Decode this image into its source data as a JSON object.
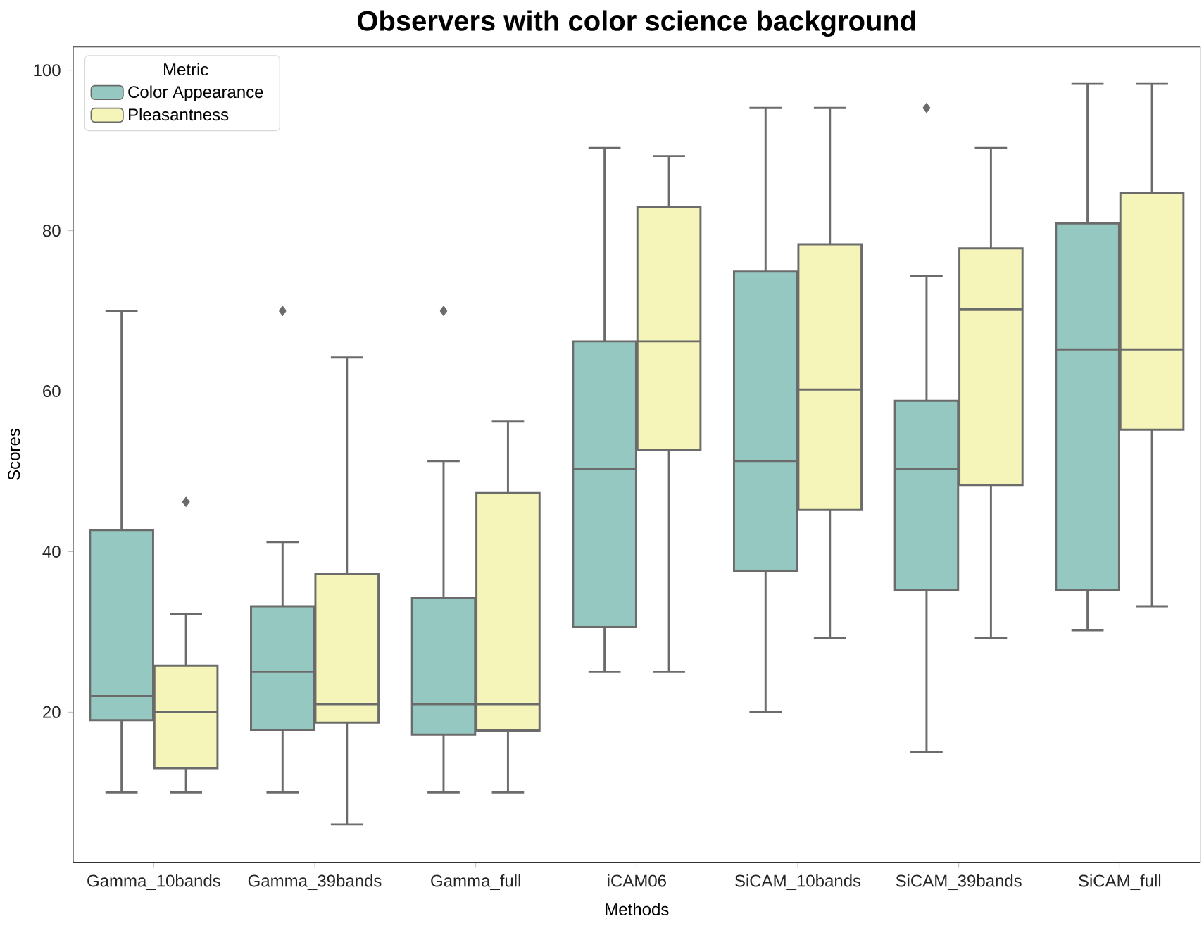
{
  "chart_data": {
    "type": "box",
    "title": "Observers with color science background",
    "xlabel": "Methods",
    "ylabel": "Scores",
    "legend_title": "Metric",
    "categories": [
      "Gamma_10bands",
      "Gamma_39bands",
      "Gamma_full",
      "iCAM06",
      "SiCAM_10bands",
      "SiCAM_39bands",
      "SiCAM_full"
    ],
    "series": [
      {
        "name": "Color Appearance",
        "color": "#95c8c0",
        "boxes": [
          {
            "low": 10,
            "q1": 19,
            "median": 22,
            "q3": 42.7,
            "high": 70
          },
          {
            "low": 10,
            "q1": 17.8,
            "median": 25,
            "q3": 33.2,
            "high": 41.2,
            "outliers": [
              70
            ]
          },
          {
            "low": 10,
            "q1": 17.2,
            "median": 21,
            "q3": 34.2,
            "high": 51.3,
            "outliers": [
              70
            ]
          },
          {
            "low": 25,
            "q1": 30.6,
            "median": 50.3,
            "q3": 66.2,
            "high": 90.3
          },
          {
            "low": 20,
            "q1": 37.6,
            "median": 51.3,
            "q3": 74.9,
            "high": 95.3
          },
          {
            "low": 15,
            "q1": 35.2,
            "median": 50.3,
            "q3": 58.8,
            "high": 74.3,
            "outliers": [
              95.3
            ]
          },
          {
            "low": 30.2,
            "q1": 35.2,
            "median": 65.2,
            "q3": 80.9,
            "high": 98.3
          }
        ]
      },
      {
        "name": "Pleasantness",
        "color": "#f5f5b9",
        "boxes": [
          {
            "low": 10,
            "q1": 13,
            "median": 20,
            "q3": 25.8,
            "high": 32.2,
            "outliers": [
              46.2
            ]
          },
          {
            "low": 6,
            "q1": 18.7,
            "median": 21,
            "q3": 37.2,
            "high": 64.2
          },
          {
            "low": 10,
            "q1": 17.7,
            "median": 21,
            "q3": 47.3,
            "high": 56.2
          },
          {
            "low": 25,
            "q1": 52.7,
            "median": 66.2,
            "q3": 82.9,
            "high": 89.3
          },
          {
            "low": 29.2,
            "q1": 45.2,
            "median": 60.2,
            "q3": 78.3,
            "high": 95.3
          },
          {
            "low": 29.2,
            "q1": 48.3,
            "median": 70.2,
            "q3": 77.8,
            "high": 90.3
          },
          {
            "low": 33.2,
            "q1": 55.2,
            "median": 65.2,
            "q3": 84.7,
            "high": 98.3
          }
        ]
      }
    ],
    "ylim": [
      1.3,
      102.9
    ],
    "yticks": [
      20,
      40,
      60,
      80,
      100
    ],
    "legend": "top left",
    "marker": "diamond"
  }
}
